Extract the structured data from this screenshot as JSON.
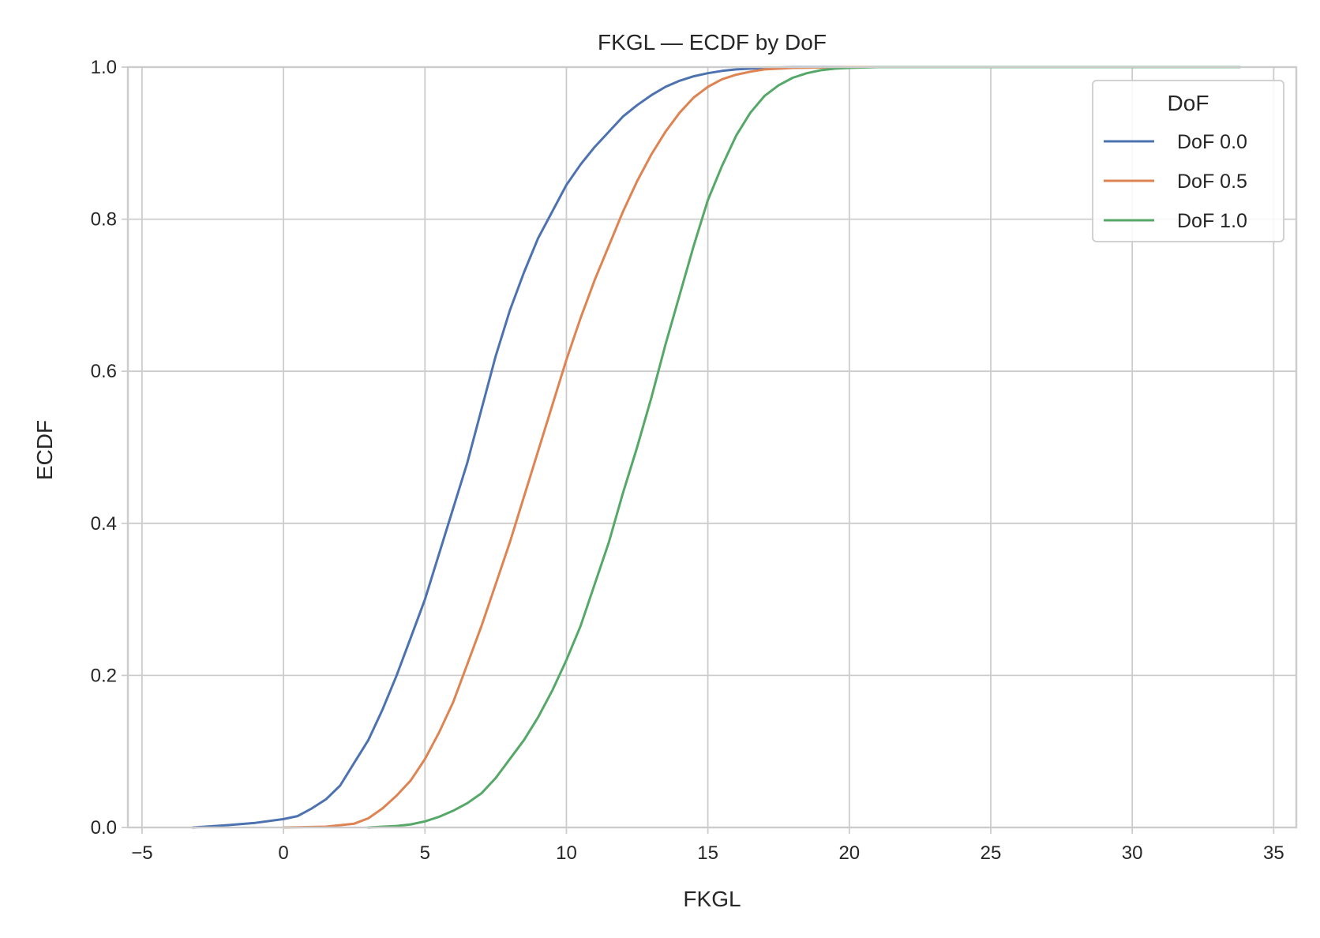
{
  "chart_data": {
    "type": "line",
    "title": "FKGL — ECDF by DoF",
    "xlabel": "FKGL",
    "ylabel": "ECDF",
    "xlim": [
      -5.5,
      35.8
    ],
    "ylim": [
      0.0,
      1.0
    ],
    "xticks": [
      -5,
      0,
      5,
      10,
      15,
      20,
      25,
      30,
      35
    ],
    "xtick_labels": [
      "−5",
      "0",
      "5",
      "10",
      "15",
      "20",
      "25",
      "30",
      "35"
    ],
    "yticks": [
      0.0,
      0.2,
      0.4,
      0.6,
      0.8,
      1.0
    ],
    "ytick_labels": [
      "0.0",
      "0.2",
      "0.4",
      "0.6",
      "0.8",
      "1.0"
    ],
    "grid": true,
    "legend": {
      "title": "DoF",
      "placement": "top-right"
    },
    "series": [
      {
        "name": "DoF 0.0",
        "color": "#4c72b0",
        "x": [
          -3.2,
          -2.0,
          -1.0,
          0.0,
          0.5,
          1.0,
          1.5,
          2.0,
          2.5,
          3.0,
          3.5,
          4.0,
          4.5,
          5.0,
          5.5,
          6.0,
          6.5,
          7.0,
          7.5,
          8.0,
          8.5,
          9.0,
          9.5,
          10.0,
          10.5,
          11.0,
          11.5,
          12.0,
          12.5,
          13.0,
          13.5,
          14.0,
          14.5,
          15.0,
          15.5,
          16.0,
          17.0,
          18.0,
          20.0,
          33.7
        ],
        "y": [
          0.0,
          0.003,
          0.006,
          0.011,
          0.015,
          0.025,
          0.037,
          0.055,
          0.085,
          0.115,
          0.155,
          0.2,
          0.25,
          0.3,
          0.36,
          0.42,
          0.48,
          0.55,
          0.62,
          0.68,
          0.73,
          0.775,
          0.81,
          0.845,
          0.872,
          0.895,
          0.915,
          0.935,
          0.95,
          0.963,
          0.974,
          0.982,
          0.988,
          0.992,
          0.995,
          0.997,
          0.999,
          1.0,
          1.0,
          1.0
        ]
      },
      {
        "name": "DoF 0.5",
        "color": "#dd8452",
        "x": [
          0.0,
          1.5,
          2.5,
          3.0,
          3.5,
          4.0,
          4.5,
          5.0,
          5.5,
          6.0,
          6.5,
          7.0,
          7.5,
          8.0,
          8.5,
          9.0,
          9.5,
          10.0,
          10.5,
          11.0,
          11.5,
          12.0,
          12.5,
          13.0,
          13.5,
          14.0,
          14.5,
          15.0,
          15.5,
          16.0,
          16.5,
          17.0,
          18.0,
          20.0,
          33.8
        ],
        "y": [
          0.0,
          0.001,
          0.005,
          0.012,
          0.025,
          0.042,
          0.062,
          0.09,
          0.125,
          0.165,
          0.215,
          0.265,
          0.32,
          0.375,
          0.435,
          0.495,
          0.555,
          0.615,
          0.67,
          0.72,
          0.765,
          0.81,
          0.85,
          0.885,
          0.915,
          0.94,
          0.96,
          0.974,
          0.984,
          0.99,
          0.994,
          0.997,
          0.999,
          1.0,
          1.0
        ]
      },
      {
        "name": "DoF 1.0",
        "color": "#55a868",
        "x": [
          3.0,
          4.0,
          4.5,
          5.0,
          5.5,
          6.0,
          6.5,
          7.0,
          7.5,
          8.0,
          8.5,
          9.0,
          9.5,
          10.0,
          10.5,
          11.0,
          11.5,
          12.0,
          12.5,
          13.0,
          13.5,
          14.0,
          14.5,
          15.0,
          15.5,
          16.0,
          16.5,
          17.0,
          17.5,
          18.0,
          18.5,
          19.0,
          19.5,
          20.0,
          21.0,
          22.0,
          33.8
        ],
        "y": [
          0.0,
          0.002,
          0.004,
          0.008,
          0.014,
          0.022,
          0.032,
          0.045,
          0.065,
          0.09,
          0.115,
          0.145,
          0.18,
          0.22,
          0.265,
          0.32,
          0.375,
          0.44,
          0.5,
          0.565,
          0.635,
          0.7,
          0.765,
          0.825,
          0.87,
          0.91,
          0.94,
          0.962,
          0.976,
          0.986,
          0.992,
          0.996,
          0.998,
          0.999,
          1.0,
          1.0,
          1.0
        ]
      }
    ]
  }
}
